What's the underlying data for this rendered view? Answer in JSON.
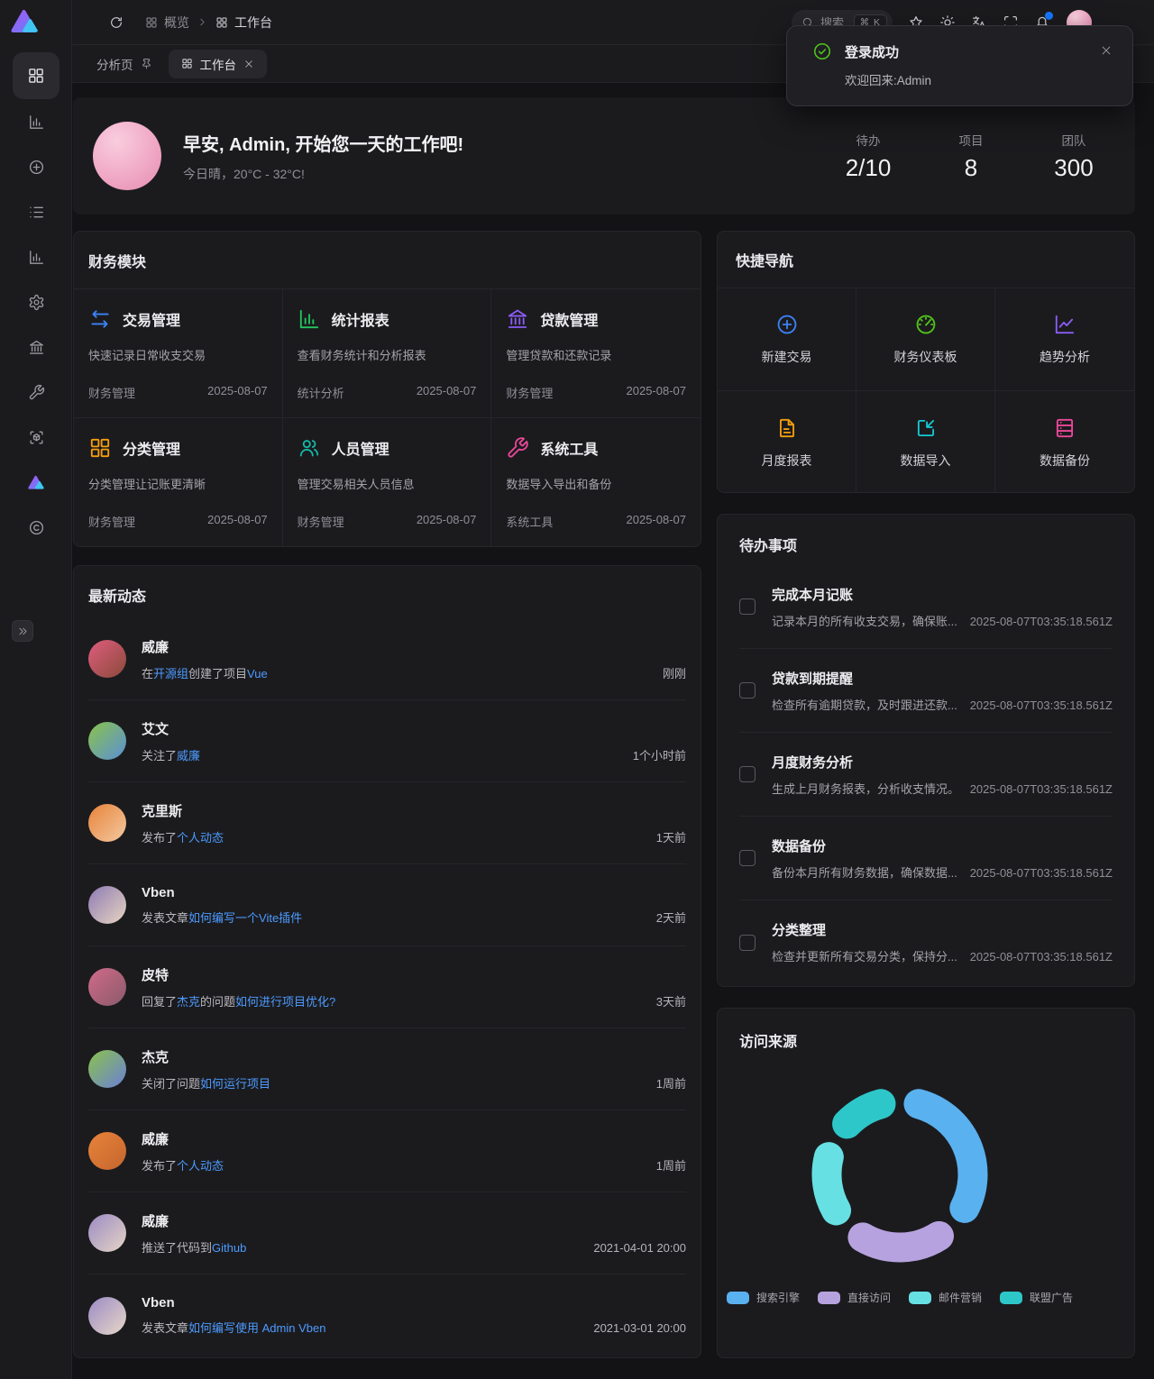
{
  "topbar": {
    "breadcrumbs": [
      {
        "icon": "grid",
        "label": "概览"
      },
      {
        "icon": "grid",
        "label": "工作台"
      }
    ],
    "search": {
      "placeholder": "搜索",
      "shortcut": "⌘ K"
    },
    "actions": [
      {
        "icon": "star"
      },
      {
        "icon": "sun"
      },
      {
        "icon": "translate"
      },
      {
        "icon": "fullscreen"
      },
      {
        "icon": "bell",
        "badge": true
      }
    ]
  },
  "sidebar": {
    "active_item": {
      "icon": "grid",
      "name": "dashboard"
    },
    "items": [
      {
        "icon": "chart-column",
        "name": "analytics"
      },
      {
        "icon": "plus-circle",
        "name": "create"
      },
      {
        "icon": "list",
        "name": "list"
      },
      {
        "icon": "chart-column",
        "name": "reports"
      },
      {
        "icon": "gear",
        "name": "settings"
      },
      {
        "icon": "bank",
        "name": "finance"
      },
      {
        "icon": "wrench",
        "name": "tools"
      },
      {
        "icon": "box-scan",
        "name": "scan"
      },
      {
        "icon": "logo-colored",
        "name": "vben"
      },
      {
        "icon": "copyright",
        "name": "copyright"
      }
    ]
  },
  "tabs": [
    {
      "label": "分析页",
      "pinned": true,
      "active": false
    },
    {
      "label": "工作台",
      "active": true,
      "closable": true
    }
  ],
  "toast": {
    "title": "登录成功",
    "message": "欢迎回来:Admin",
    "status_color": "#52c41a"
  },
  "welcome": {
    "greeting": "早安, Admin, 开始您一天的工作吧!",
    "weather": "今日晴，20°C - 32°C!",
    "stats": [
      {
        "label": "待办",
        "value": "2/10"
      },
      {
        "label": "项目",
        "value": "8"
      },
      {
        "label": "团队",
        "value": "300"
      }
    ]
  },
  "finance": {
    "title": "财务模块",
    "cards": [
      {
        "icon": "swap",
        "color": "#3b82f6",
        "name": "交易管理",
        "desc": "快速记录日常收支交易",
        "group": "财务管理",
        "date": "2025-08-07"
      },
      {
        "icon": "chart-column",
        "color": "#22c55e",
        "name": "统计报表",
        "desc": "查看财务统计和分析报表",
        "group": "统计分析",
        "date": "2025-08-07"
      },
      {
        "icon": "bank",
        "color": "#8b5cf6",
        "name": "贷款管理",
        "desc": "管理贷款和还款记录",
        "group": "财务管理",
        "date": "2025-08-07"
      },
      {
        "icon": "grid",
        "color": "#f59e0b",
        "name": "分类管理",
        "desc": "分类管理让记账更清晰",
        "group": "财务管理",
        "date": "2025-08-07"
      },
      {
        "icon": "users",
        "color": "#14b8a6",
        "name": "人员管理",
        "desc": "管理交易相关人员信息",
        "group": "财务管理",
        "date": "2025-08-07"
      },
      {
        "icon": "wrench",
        "color": "#ec4899",
        "name": "系统工具",
        "desc": "数据导入导出和备份",
        "group": "系统工具",
        "date": "2025-08-07"
      }
    ]
  },
  "quicknav": {
    "title": "快捷导航",
    "items": [
      {
        "icon": "plus-circle",
        "color": "#3b82f6",
        "label": "新建交易"
      },
      {
        "icon": "gauge",
        "color": "#52c41a",
        "label": "财务仪表板"
      },
      {
        "icon": "trend",
        "color": "#8b5cf6",
        "label": "趋势分析"
      },
      {
        "icon": "file-text",
        "color": "#f59e0b",
        "label": "月度报表"
      },
      {
        "icon": "import",
        "color": "#14c9d4",
        "label": "数据导入"
      },
      {
        "icon": "server",
        "color": "#ec4899",
        "label": "数据备份"
      }
    ]
  },
  "activity": {
    "title": "最新动态",
    "items": [
      {
        "name": "威廉",
        "avatar": [
          "#e05d7e",
          "#8a4a3a"
        ],
        "segments": [
          {
            "t": "在 "
          },
          {
            "t": "开源组",
            "link": true
          },
          {
            "t": " 创建了项目 "
          },
          {
            "t": "Vue",
            "link": true
          }
        ],
        "time": "刚刚"
      },
      {
        "name": "艾文",
        "avatar": [
          "#8bc34a",
          "#5a8fd8"
        ],
        "segments": [
          {
            "t": "关注了 "
          },
          {
            "t": "威廉",
            "link": true
          }
        ],
        "time": "1个小时前"
      },
      {
        "name": "克里斯",
        "avatar": [
          "#e8833a",
          "#f3c9a0"
        ],
        "segments": [
          {
            "t": "发布了 "
          },
          {
            "t": "个人动态",
            "link": true
          }
        ],
        "time": "1天前"
      },
      {
        "name": "Vben",
        "avatar": [
          "#8d7ab5",
          "#e8d5c0"
        ],
        "segments": [
          {
            "t": "发表文章 "
          },
          {
            "t": "如何编写一个Vite插件",
            "link": true
          }
        ],
        "time": "2天前"
      },
      {
        "name": "皮特",
        "avatar": [
          "#d16b8a",
          "#8a5a6a"
        ],
        "segments": [
          {
            "t": "回复了 "
          },
          {
            "t": "杰克",
            "link": true
          },
          {
            "t": " 的问题 "
          },
          {
            "t": "如何进行项目优化?",
            "link": true
          }
        ],
        "time": "3天前"
      },
      {
        "name": "杰克",
        "avatar": [
          "#8bc34a",
          "#6a7fd8"
        ],
        "segments": [
          {
            "t": "关闭了问题 "
          },
          {
            "t": "如何运行项目",
            "link": true
          }
        ],
        "time": "1周前"
      },
      {
        "name": "威廉",
        "avatar": [
          "#e8833a",
          "#c4662e"
        ],
        "segments": [
          {
            "t": "发布了 "
          },
          {
            "t": "个人动态",
            "link": true
          }
        ],
        "time": "1周前"
      },
      {
        "name": "威廉",
        "avatar": [
          "#9b8ac4",
          "#e5d5c5"
        ],
        "segments": [
          {
            "t": "推送了代码到 "
          },
          {
            "t": "Github",
            "link": true
          }
        ],
        "time": "2021-04-01 20:00"
      },
      {
        "name": "Vben",
        "avatar": [
          "#9b8ac4",
          "#e8d8c8"
        ],
        "segments": [
          {
            "t": "发表文章 "
          },
          {
            "t": "如何编写使用 Admin Vben",
            "link": true
          }
        ],
        "time": "2021-03-01 20:00"
      }
    ]
  },
  "todos": {
    "title": "待办事项",
    "items": [
      {
        "title": "完成本月记账",
        "desc": "记录本月的所有收支交易，确保账...",
        "date": "2025-08-07T03:35:18.561Z"
      },
      {
        "title": "贷款到期提醒",
        "desc": "检查所有逾期贷款，及时跟进还款...",
        "date": "2025-08-07T03:35:18.561Z"
      },
      {
        "title": "月度财务分析",
        "desc": "生成上月财务报表，分析收支情况。",
        "date": "2025-08-07T03:35:18.561Z"
      },
      {
        "title": "数据备份",
        "desc": "备份本月所有财务数据，确保数据...",
        "date": "2025-08-07T03:35:18.561Z"
      },
      {
        "title": "分类整理",
        "desc": "检查并更新所有交易分类，保持分...",
        "date": "2025-08-07T03:35:18.561Z"
      }
    ]
  },
  "chart_data": {
    "type": "pie",
    "donut": true,
    "title": "访问来源",
    "legend_position": "bottom",
    "legend": [
      "搜索引擎",
      "直接访问",
      "邮件营销",
      "联盟广告"
    ],
    "series": [
      {
        "name": "访问来源",
        "points": [
          {
            "name": "搜索引擎",
            "value": 1048,
            "color": "#5ab1ef"
          },
          {
            "name": "直接访问",
            "value": 735,
            "color": "#b6a2de"
          },
          {
            "name": "邮件营销",
            "value": 580,
            "color": "#67e0e3"
          },
          {
            "name": "联盟广告",
            "value": 484,
            "color": "#2ec7c9"
          }
        ]
      }
    ]
  }
}
